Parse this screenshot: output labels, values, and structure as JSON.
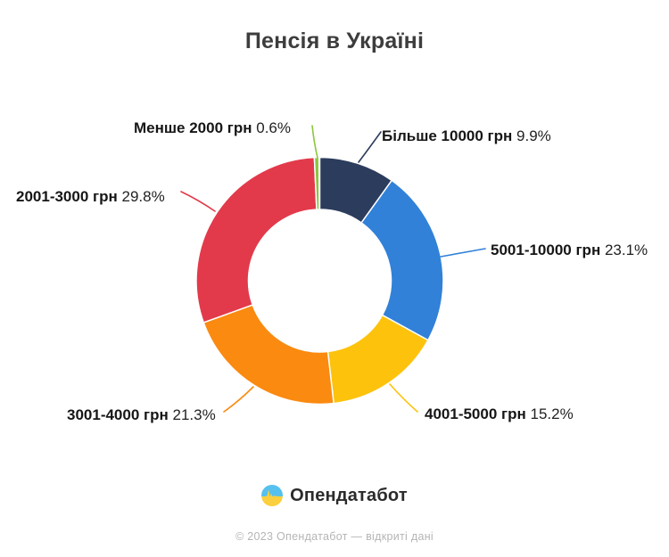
{
  "header": {
    "title": "Пенсія в Україні"
  },
  "chart_data": {
    "type": "donut",
    "title": "Пенсія в Україні",
    "legend_position": "callout-labels",
    "start_angle_deg": 0,
    "direction": "clockwise",
    "hole_ratio": 0.58,
    "segments": [
      {
        "label": "Більше 10000 грн",
        "value": 9.9,
        "pct_label": "9.9%",
        "color": "#2c3c5c"
      },
      {
        "label": "5001-10000 грн",
        "value": 23.1,
        "pct_label": "23.1%",
        "color": "#3181d8"
      },
      {
        "label": "4001-5000 грн",
        "value": 15.2,
        "pct_label": "15.2%",
        "color": "#fdc20c"
      },
      {
        "label": "3001-4000 грн",
        "value": 21.3,
        "pct_label": "21.3%",
        "color": "#fa8a10"
      },
      {
        "label": "2001-3000 грн",
        "value": 29.8,
        "pct_label": "29.8%",
        "color": "#e23a4b"
      },
      {
        "label": "Менше 2000 грн",
        "value": 0.6,
        "pct_label": "0.6%",
        "color": "#8cc63f"
      }
    ]
  },
  "footer": {
    "logo_text": "Опендатабот",
    "copyright": "© 2023 Опендатабот — відкриті дані"
  }
}
